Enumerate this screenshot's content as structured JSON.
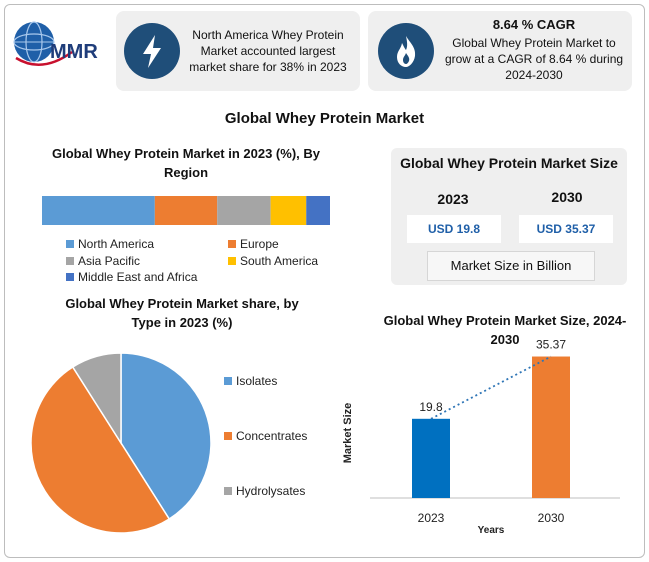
{
  "logo": {
    "text": "MMR"
  },
  "highlights": [
    {
      "icon": "lightning-icon",
      "text": "North America Whey Protein Market accounted largest market share for 38% in 2023"
    },
    {
      "icon": "flame-icon",
      "title": "8.64 % CAGR",
      "text": "Global Whey Protein Market to grow at a CAGR of 8.64 % during 2024-2030"
    }
  ],
  "main_title": "Global Whey Protein Market",
  "size_panel": {
    "title": "Global Whey Protein Market Size",
    "year_a": "2023",
    "value_a": "USD 19.8",
    "year_b": "2030",
    "value_b": "USD 35.37",
    "unit": "Market Size in Billion"
  },
  "colors": {
    "blue": "#5b9bd5",
    "orange": "#ed7d31",
    "gray": "#a5a5a5",
    "yellow": "#ffc000",
    "dark_blue": "#4472c4",
    "bar_2023": "#0070c0",
    "bar_2030": "#ed7d31",
    "navy": "#1f4e79"
  },
  "chart_data": [
    {
      "type": "bar",
      "orientation": "horizontal-stacked",
      "title": "Global Whey Protein Market in 2023 (%), By Region",
      "series": [
        {
          "name": "North America",
          "value": 38,
          "color": "#5b9bd5"
        },
        {
          "name": "Europe",
          "value": 21,
          "color": "#ed7d31"
        },
        {
          "name": "Asia Pacific",
          "value": 18,
          "color": "#a5a5a5"
        },
        {
          "name": "South America",
          "value": 12,
          "color": "#ffc000"
        },
        {
          "name": "Middle East and Africa",
          "value": 8,
          "color": "#4472c4"
        }
      ],
      "legend": "bottom"
    },
    {
      "type": "pie",
      "title": "Global Whey Protein Market share, by Type in 2023  (%)",
      "slices": [
        {
          "name": "Isolates",
          "value": 41,
          "color": "#5b9bd5"
        },
        {
          "name": "Concentrates",
          "value": 50,
          "color": "#ed7d31"
        },
        {
          "name": "Hydrolysates",
          "value": 9,
          "color": "#a5a5a5"
        }
      ],
      "legend": "right"
    },
    {
      "type": "bar",
      "title": "Global Whey Protein Market Size, 2024-2030",
      "categories": [
        "2023",
        "2030"
      ],
      "values": [
        19.8,
        35.37
      ],
      "value_labels": [
        "19.8",
        "35.37"
      ],
      "xlabel": "Years",
      "ylabel": "Market Size",
      "ylim": [
        0,
        40
      ],
      "trend_line": "dotted"
    }
  ]
}
